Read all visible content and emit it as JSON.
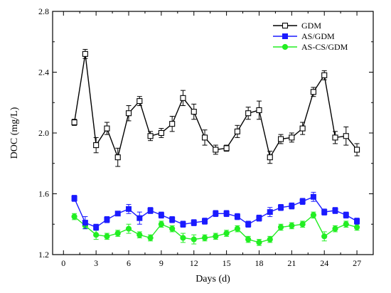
{
  "chart_data": {
    "type": "line",
    "xlabel": "Days (d)",
    "ylabel": "DOC (mg/L)",
    "xlim": [
      -1,
      28.5
    ],
    "ylim": [
      1.2,
      2.8
    ],
    "xticks": [
      0,
      3,
      6,
      9,
      12,
      15,
      18,
      21,
      24,
      27
    ],
    "yticks": [
      1.2,
      1.6,
      2.0,
      2.4,
      2.8
    ],
    "grid": false,
    "legend_position": "top-right",
    "x": [
      1,
      2,
      3,
      4,
      5,
      6,
      7,
      8,
      9,
      10,
      11,
      12,
      13,
      14,
      15,
      16,
      17,
      18,
      19,
      20,
      21,
      22,
      23,
      24,
      25,
      26,
      27
    ],
    "series": [
      {
        "name": "GDM",
        "color": "#000000",
        "marker": "hollow-square",
        "values": [
          2.07,
          2.52,
          1.92,
          2.03,
          1.84,
          2.13,
          2.21,
          1.98,
          2.0,
          2.06,
          2.23,
          2.14,
          1.97,
          1.89,
          1.9,
          2.01,
          2.13,
          2.15,
          1.84,
          1.96,
          1.97,
          2.03,
          2.27,
          2.38,
          1.97,
          1.98,
          1.89
        ],
        "errors": [
          0.02,
          0.03,
          0.05,
          0.04,
          0.06,
          0.05,
          0.03,
          0.03,
          0.03,
          0.05,
          0.05,
          0.05,
          0.05,
          0.03,
          0.02,
          0.04,
          0.04,
          0.06,
          0.04,
          0.03,
          0.03,
          0.04,
          0.03,
          0.03,
          0.04,
          0.06,
          0.04
        ]
      },
      {
        "name": "AS/GDM",
        "color": "#1a1aff",
        "marker": "filled-square",
        "values": [
          1.57,
          1.41,
          1.38,
          1.43,
          1.47,
          1.5,
          1.44,
          1.49,
          1.46,
          1.43,
          1.4,
          1.41,
          1.42,
          1.47,
          1.47,
          1.45,
          1.4,
          1.44,
          1.48,
          1.51,
          1.52,
          1.55,
          1.58,
          1.48,
          1.49,
          1.46,
          1.42
        ],
        "errors": [
          0.02,
          0.04,
          0.02,
          0.02,
          0.01,
          0.03,
          0.04,
          0.02,
          0.02,
          0.02,
          0.02,
          0.02,
          0.02,
          0.02,
          0.02,
          0.02,
          0.02,
          0.02,
          0.03,
          0.02,
          0.02,
          0.02,
          0.03,
          0.02,
          0.02,
          0.02,
          0.02
        ]
      },
      {
        "name": "AS-CS/GDM",
        "color": "#22ee22",
        "marker": "filled-circle",
        "values": [
          1.45,
          1.39,
          1.33,
          1.32,
          1.34,
          1.37,
          1.33,
          1.31,
          1.4,
          1.37,
          1.31,
          1.3,
          1.31,
          1.32,
          1.34,
          1.37,
          1.3,
          1.28,
          1.3,
          1.38,
          1.39,
          1.4,
          1.46,
          1.32,
          1.37,
          1.4,
          1.38
        ],
        "errors": [
          0.02,
          0.02,
          0.03,
          0.02,
          0.02,
          0.03,
          0.02,
          0.02,
          0.02,
          0.02,
          0.03,
          0.03,
          0.02,
          0.02,
          0.02,
          0.02,
          0.02,
          0.02,
          0.02,
          0.02,
          0.02,
          0.02,
          0.02,
          0.03,
          0.02,
          0.02,
          0.02
        ]
      }
    ]
  }
}
